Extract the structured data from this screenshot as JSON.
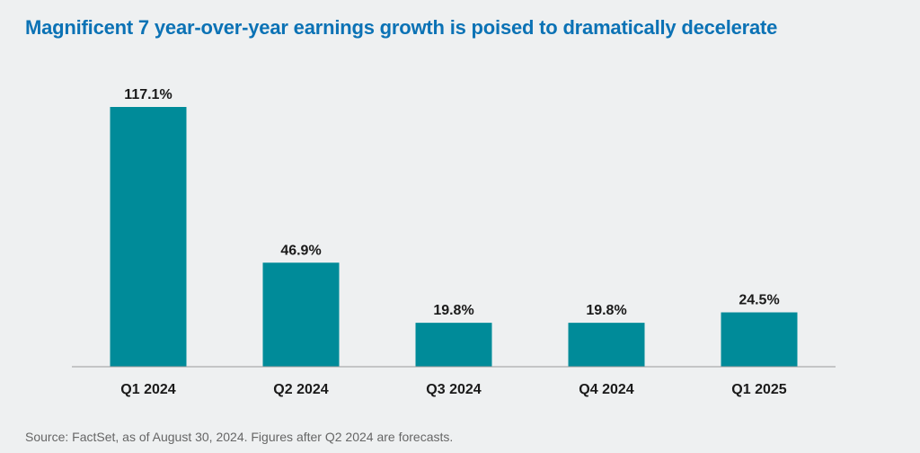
{
  "chart_data": {
    "type": "bar",
    "title": "Magnificent 7 year-over-year earnings growth is poised to dramatically decelerate",
    "categories": [
      "Q1 2024",
      "Q2 2024",
      "Q3 2024",
      "Q4 2024",
      "Q1 2025"
    ],
    "values": [
      117.1,
      46.9,
      19.8,
      19.8,
      24.5
    ],
    "value_labels": [
      "117.1%",
      "46.9%",
      "19.8%",
      "19.8%",
      "24.5%"
    ],
    "xlabel": "",
    "ylabel": "",
    "ylim": [
      0,
      117.1
    ],
    "grid": false,
    "bar_color": "#008b99",
    "source": "Source: FactSet, as of August 30, 2024. Figures after Q2 2024 are forecasts."
  }
}
